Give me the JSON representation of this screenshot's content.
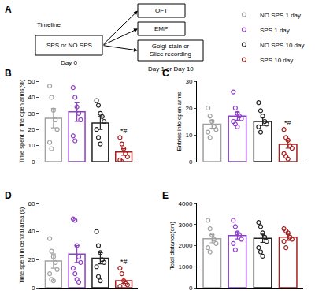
{
  "timeline": {
    "panel": "A",
    "title": "Timeline",
    "start": {
      "label": "SPS or NO SPS",
      "day": "Day 0"
    },
    "outcomes": [
      [
        "OFT"
      ],
      [
        "EMP"
      ],
      [
        "Golgi-stain or",
        "Slice recording"
      ]
    ],
    "outcome_day": "Day 1 or Day 10"
  },
  "chart_data": [
    {
      "panel": "B",
      "type": "bar",
      "categories": [
        "NO SPS 1 day",
        "SPS 1 day",
        "NO SPS 10 day",
        "SPS 10 day"
      ],
      "colors": [
        "#a0a0a0",
        "#8e3fc9",
        "#222222",
        "#a32020"
      ],
      "values": [
        27,
        31,
        24,
        6
      ],
      "errors": [
        6,
        6,
        4,
        2
      ],
      "points": [
        [
          47,
          40,
          32,
          26,
          20,
          12,
          8
        ],
        [
          46,
          40,
          34,
          30,
          26,
          16,
          13
        ],
        [
          38,
          35,
          30,
          28,
          25,
          20,
          15,
          11
        ],
        [
          15,
          11,
          8,
          5,
          3,
          1,
          0
        ]
      ],
      "ylabel": "Time spent in the open arms(%)",
      "ylim": [
        0,
        50
      ],
      "yticks": [
        0,
        10,
        20,
        30,
        40,
        50
      ],
      "tick_labels": "y",
      "annotations": [
        {
          "text": "*#",
          "category": "SPS 10 day"
        }
      ]
    },
    {
      "panel": "C",
      "type": "bar",
      "categories": [
        "NO SPS 1 day",
        "SPS 1 day",
        "NO SPS 10 day",
        "SPS 10 day"
      ],
      "colors": [
        "#a0a0a0",
        "#8e3fc9",
        "#222222",
        "#a32020"
      ],
      "values": [
        14,
        17,
        15,
        6.5
      ],
      "errors": [
        1.5,
        1.5,
        1.5,
        1.5
      ],
      "points": [
        [
          20,
          17,
          15,
          13,
          12,
          11,
          9
        ],
        [
          26,
          20,
          18,
          17,
          16,
          15,
          14,
          13
        ],
        [
          22,
          19,
          17,
          15,
          14,
          13,
          11
        ],
        [
          12,
          9,
          8,
          6,
          5,
          3,
          2,
          1
        ]
      ],
      "ylabel": "Entries into open arms",
      "ylim": [
        0,
        30
      ],
      "yticks": [
        0,
        10,
        20,
        30
      ],
      "tick_labels": "y",
      "legend": "upper right",
      "annotations": [
        {
          "text": "*#",
          "category": "SPS 10 day"
        }
      ]
    },
    {
      "panel": "D",
      "type": "bar",
      "categories": [
        "NO SPS 1 day",
        "SPS 1 day",
        "NO SPS 10 day",
        "SPS 10 day"
      ],
      "colors": [
        "#a0a0a0",
        "#8e3fc9",
        "#222222",
        "#a32020"
      ],
      "values": [
        19,
        24,
        21,
        5
      ],
      "errors": [
        5,
        6,
        4,
        2
      ],
      "points": [
        [
          35,
          26,
          22,
          18,
          13,
          10,
          6,
          5
        ],
        [
          49,
          48,
          30,
          22,
          18,
          14,
          10,
          6,
          4
        ],
        [
          40,
          30,
          25,
          20,
          18,
          15,
          8,
          5
        ],
        [
          14,
          10,
          5,
          3,
          2,
          1
        ]
      ],
      "ylabel": "Time spent in central area (s)",
      "ylim": [
        0,
        60
      ],
      "yticks": [
        0,
        20,
        40,
        60
      ],
      "tick_labels": "y",
      "annotations": [
        {
          "text": "*#",
          "category": "SPS 10 day"
        }
      ]
    },
    {
      "panel": "E",
      "type": "bar",
      "categories": [
        "NO SPS 1 day",
        "SPS 1 day",
        "NO SPS 10 day",
        "SPS 10 day"
      ],
      "colors": [
        "#a0a0a0",
        "#8e3fc9",
        "#222222",
        "#a32020"
      ],
      "values": [
        2330,
        2480,
        2350,
        2400
      ],
      "errors": [
        200,
        170,
        200,
        150
      ],
      "points": [
        [
          3200,
          2800,
          2500,
          2300,
          2100,
          1900,
          1700
        ],
        [
          3200,
          2900,
          2600,
          2500,
          2300,
          2100,
          1800
        ],
        [
          3100,
          2900,
          2600,
          2400,
          2200,
          1900,
          1700,
          1500
        ],
        [
          2800,
          2700,
          2600,
          2400,
          2300,
          2200,
          1900
        ]
      ],
      "ylabel": "Total distance(cm)",
      "ylim": [
        0,
        4000
      ],
      "yticks": [
        0,
        1000,
        2000,
        3000,
        4000
      ],
      "tick_labels": "y"
    }
  ]
}
